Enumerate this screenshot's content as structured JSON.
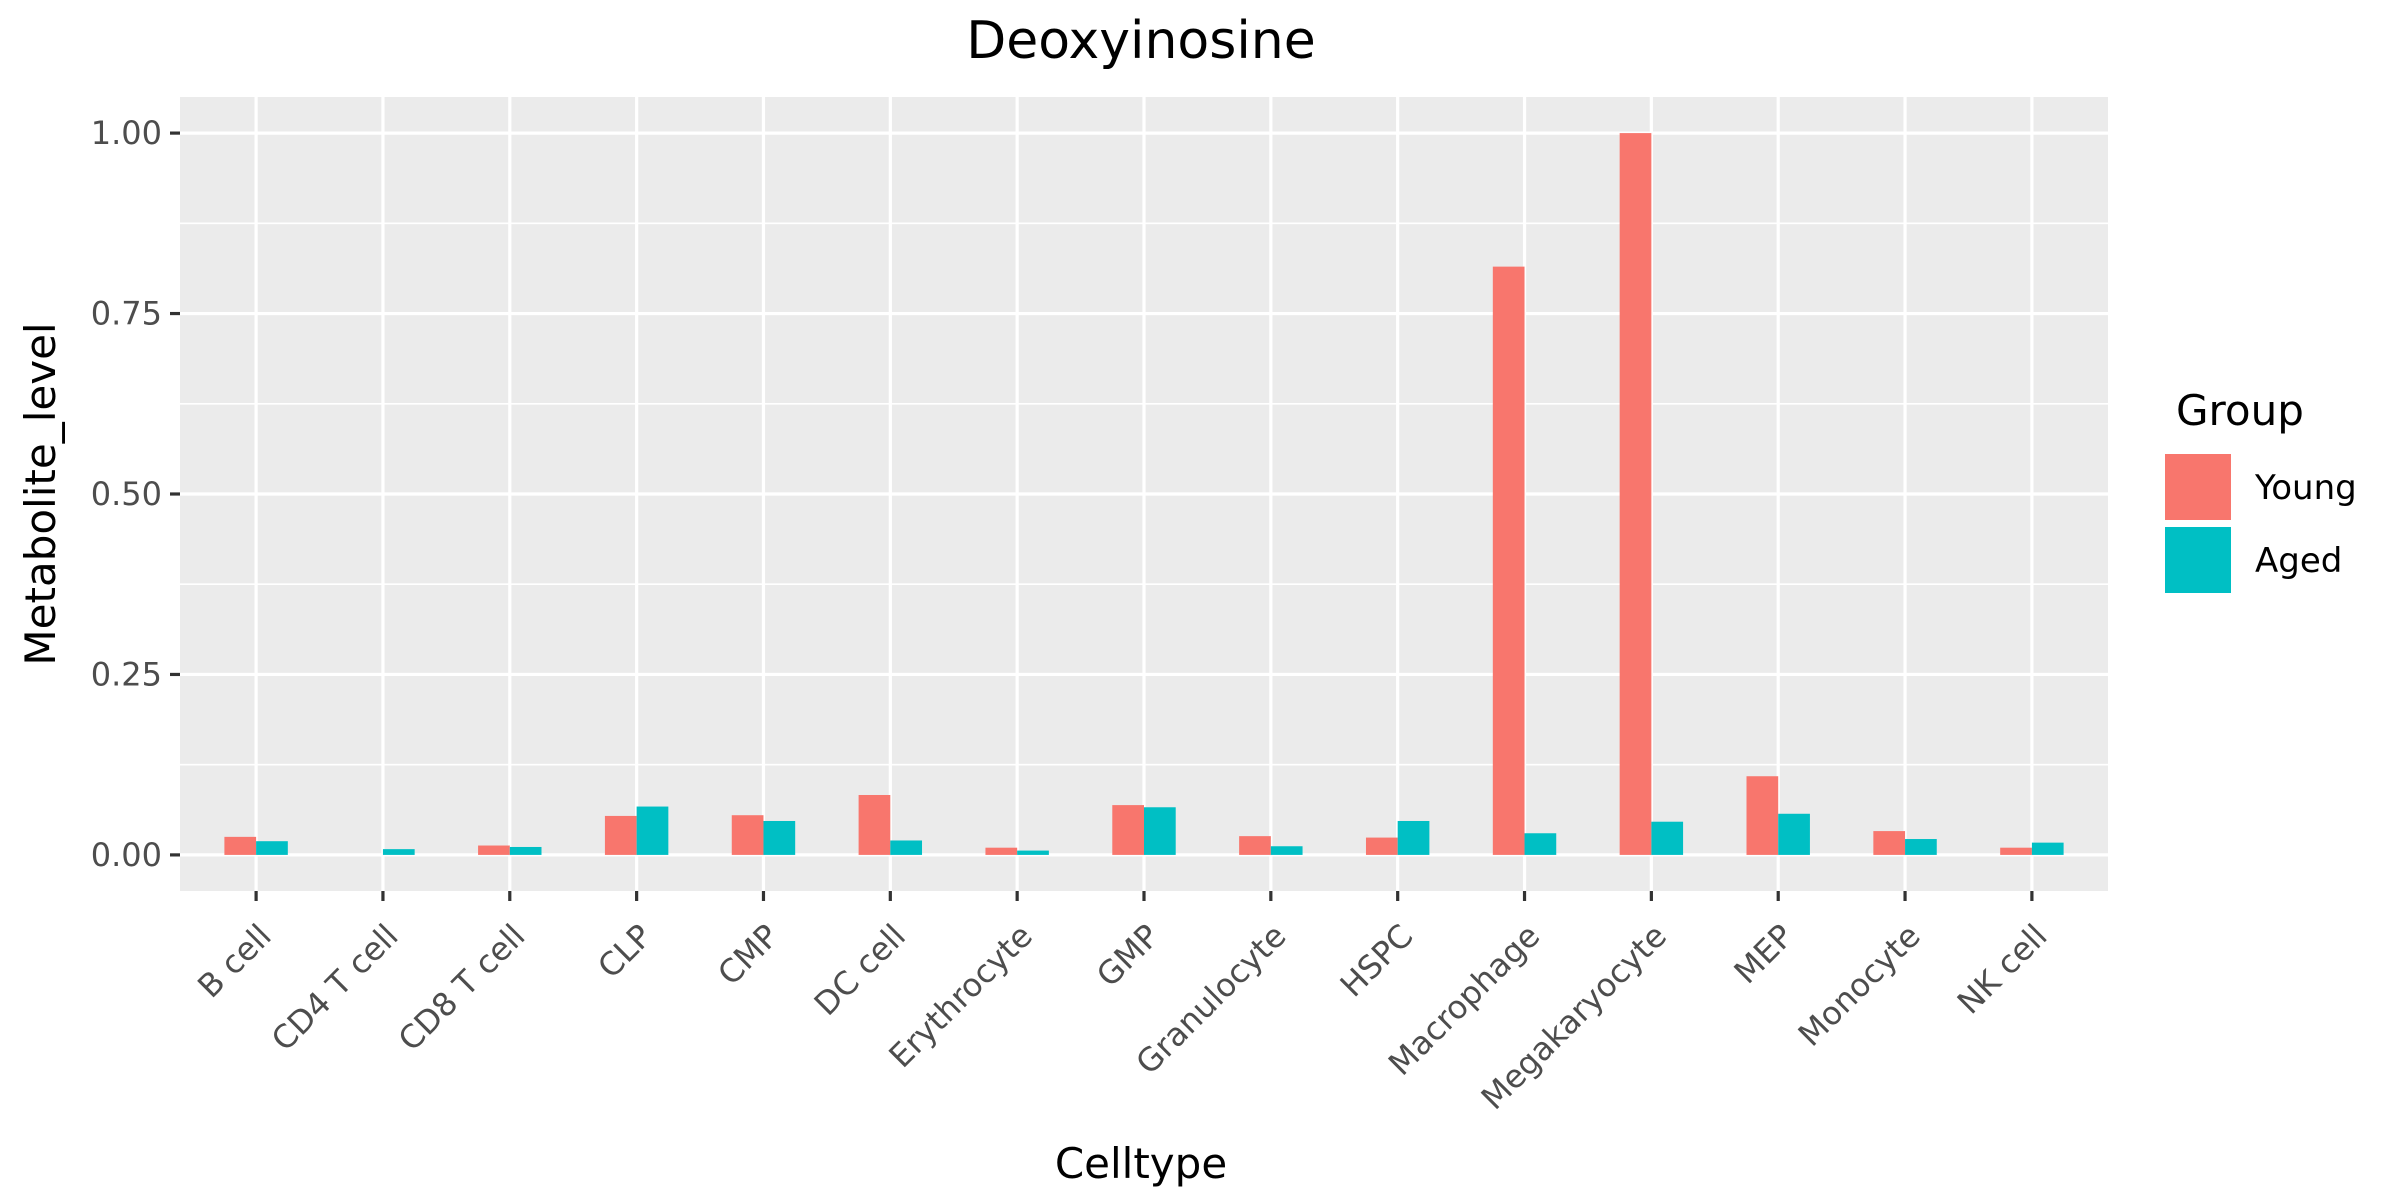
{
  "chart_data": {
    "type": "bar",
    "title": "Deoxyinosine",
    "xlabel": "Celltype",
    "ylabel": "Metabolite_level",
    "categories": [
      "B cell",
      "CD4 T cell",
      "CD8 T cell",
      "CLP",
      "CMP",
      "DC cell",
      "Erythrocyte",
      "GMP",
      "Granulocyte",
      "HSPC",
      "Macrophage",
      "Megakaryocyte",
      "MEP",
      "Monocyte",
      "NK cell"
    ],
    "series": [
      {
        "name": "Young",
        "color": "#F8766D",
        "values": [
          0.025,
          0.0,
          0.013,
          0.054,
          0.055,
          0.083,
          0.01,
          0.069,
          0.026,
          0.024,
          0.815,
          1.0,
          0.109,
          0.033,
          0.01
        ]
      },
      {
        "name": "Aged",
        "color": "#00BFC4",
        "values": [
          0.019,
          0.008,
          0.011,
          0.067,
          0.047,
          0.02,
          0.006,
          0.066,
          0.012,
          0.047,
          0.03,
          0.046,
          0.057,
          0.022,
          0.017
        ]
      }
    ],
    "ylim": [
      -0.05,
      1.05
    ],
    "yticks": [
      0.0,
      0.25,
      0.5,
      0.75,
      1.0
    ],
    "ytick_labels": [
      "0.00",
      "0.25",
      "0.50",
      "0.75",
      "1.00"
    ],
    "grid": true,
    "panel_background": "#EBEBEB",
    "legend": {
      "title": "Group",
      "position": "right"
    }
  }
}
